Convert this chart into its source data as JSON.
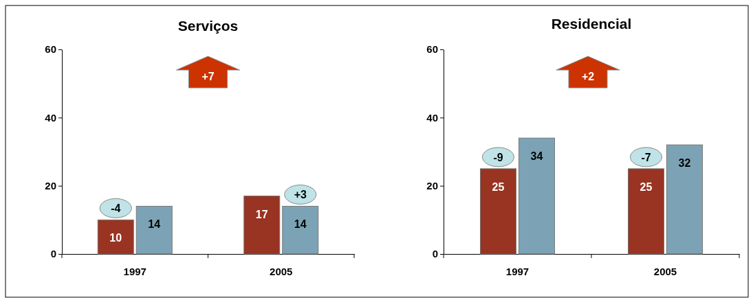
{
  "chart_data": [
    {
      "type": "bar",
      "title": "Serviços",
      "categories": [
        "1997",
        "2005"
      ],
      "series": [
        {
          "color": "#993322",
          "values": [
            10,
            17
          ]
        },
        {
          "color": "#7ba3b5",
          "values": [
            14,
            14
          ]
        }
      ],
      "ylim": [
        0,
        60
      ],
      "yticks": [
        0,
        20,
        40,
        60
      ],
      "data_labels": true,
      "annotations": [
        "+7",
        {
          "text": "-4",
          "x": "1997",
          "y": 10
        },
        {
          "text": "+3",
          "x": "2005",
          "y": 14
        }
      ]
    },
    {
      "type": "bar",
      "title": "Residencial",
      "categories": [
        "1997",
        "2005"
      ],
      "series": [
        {
          "color": "#993322",
          "values": [
            25,
            25
          ]
        },
        {
          "color": "#7ba3b5",
          "values": [
            34,
            32
          ]
        }
      ],
      "ylim": [
        0,
        60
      ],
      "yticks": [
        0,
        20,
        40,
        60
      ],
      "data_labels": true,
      "annotations": [
        "+2",
        {
          "text": "-9",
          "x": "1997",
          "y": 25
        },
        {
          "text": "-7",
          "x": "2005",
          "y": 25
        }
      ]
    }
  ]
}
